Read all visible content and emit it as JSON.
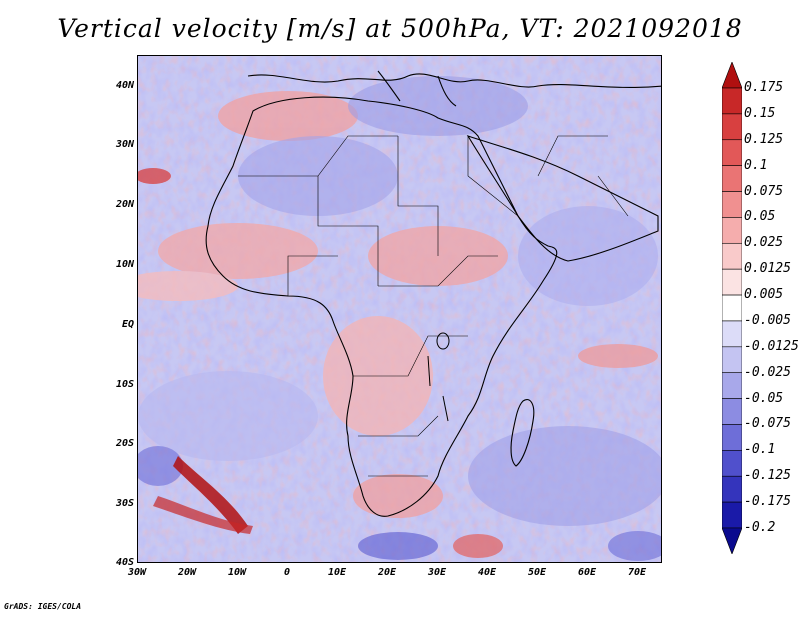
{
  "title": "Vertical velocity [m/s] at 500hPa, VT: 2021092018",
  "credit": "GrADS: IGES/COLA",
  "map": {
    "lat_ticks": [
      "40N",
      "30N",
      "20N",
      "10N",
      "EQ",
      "10S",
      "20S",
      "30S",
      "40S"
    ],
    "lon_ticks": [
      "30W",
      "20W",
      "10W",
      "0",
      "10E",
      "20E",
      "30E",
      "40E",
      "50E",
      "60E",
      "70E"
    ],
    "lat_range": [
      -40,
      45
    ],
    "lon_range": [
      -30,
      75
    ]
  },
  "colorbar": {
    "levels": [
      "0.175",
      "0.15",
      "0.125",
      "0.1",
      "0.075",
      "0.05",
      "0.025",
      "0.0125",
      "0.005",
      "-0.005",
      "-0.0125",
      "-0.025",
      "-0.05",
      "-0.075",
      "-0.1",
      "-0.125",
      "-0.175",
      "-0.2"
    ],
    "colors": [
      "#b01010",
      "#c82828",
      "#d84040",
      "#e25858",
      "#ea7474",
      "#f09090",
      "#f5adad",
      "#f9caca",
      "#fbe3e3",
      "#ffffff",
      "#dcdcf8",
      "#c4c4f2",
      "#a8a8ea",
      "#8c8ce2",
      "#6e6ed8",
      "#5050cc",
      "#3434bc",
      "#1a1aa8",
      "#0a0a8e"
    ]
  }
}
